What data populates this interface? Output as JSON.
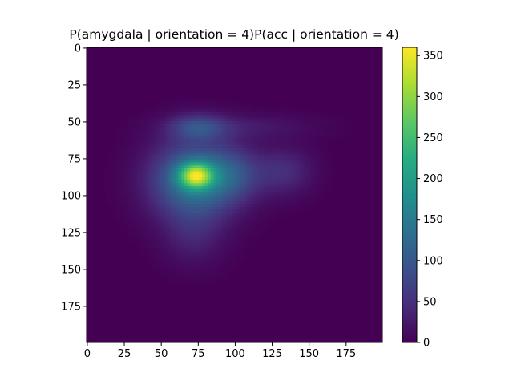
{
  "chart_data": {
    "type": "heatmap",
    "title": "P(amygdala | orientation = 4)P(acc | orientation = 4)",
    "colormap": "viridis",
    "x_ticks": [
      0,
      25,
      50,
      75,
      100,
      125,
      150,
      175
    ],
    "y_ticks": [
      0,
      25,
      50,
      75,
      100,
      125,
      150,
      175
    ],
    "xlim": [
      0,
      199
    ],
    "ylim": [
      199,
      0
    ],
    "colorbar": {
      "ticks": [
        0,
        50,
        100,
        150,
        200,
        250,
        300,
        350
      ],
      "range": [
        0,
        360
      ]
    },
    "blobs": [
      {
        "cx": 74,
        "cy": 87,
        "sx": 8,
        "sy": 6,
        "amp": 210
      },
      {
        "cx": 73,
        "cy": 90,
        "sx": 20,
        "sy": 18,
        "amp": 150
      },
      {
        "cx": 75,
        "cy": 54,
        "sx": 13,
        "sy": 6,
        "amp": 70
      },
      {
        "cx": 100,
        "cy": 86,
        "sx": 14,
        "sy": 12,
        "amp": 60
      },
      {
        "cx": 134,
        "cy": 84,
        "sx": 13,
        "sy": 11,
        "amp": 45
      },
      {
        "cx": 105,
        "cy": 54,
        "sx": 32,
        "sy": 6,
        "amp": 25
      },
      {
        "cx": 72,
        "cy": 128,
        "sx": 14,
        "sy": 14,
        "amp": 30
      }
    ]
  }
}
